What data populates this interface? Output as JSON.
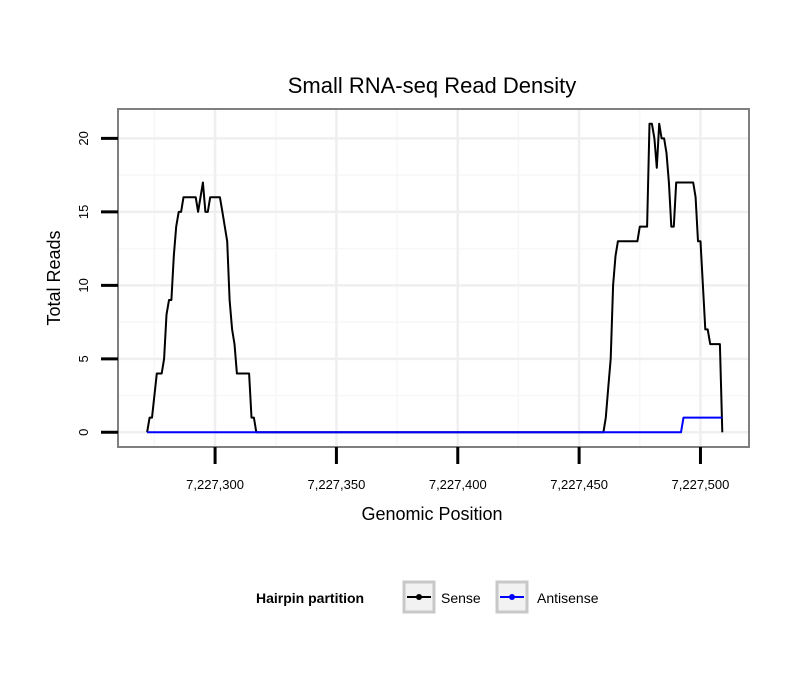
{
  "chart_data": {
    "type": "line",
    "title": "Small RNA-seq Read Density",
    "xlabel": "Genomic Position",
    "ylabel": "Total Reads",
    "xlim": [
      7227260,
      7227520
    ],
    "ylim": [
      -1,
      22
    ],
    "x_ticks": [
      7227300,
      7227350,
      7227400,
      7227450,
      7227500
    ],
    "x_tick_labels": [
      "7,227,300",
      "7,227,350",
      "7,227,400",
      "7,227,450",
      "7,227,500"
    ],
    "y_ticks": [
      0,
      5,
      10,
      15,
      20
    ],
    "y_tick_labels": [
      "0",
      "5",
      "10",
      "15",
      "20"
    ],
    "grid": true,
    "legend": {
      "title": "Hairpin partition",
      "placement": "bottom",
      "entries": [
        "Sense",
        "Antisense"
      ]
    },
    "series": [
      {
        "name": "Sense",
        "color": "#000000",
        "points": [
          [
            7227272,
            0
          ],
          [
            7227273,
            1
          ],
          [
            7227274,
            1
          ],
          [
            7227276,
            4
          ],
          [
            7227278,
            4
          ],
          [
            7227279,
            5
          ],
          [
            7227280,
            8
          ],
          [
            7227281,
            9
          ],
          [
            7227282,
            9
          ],
          [
            7227283,
            12
          ],
          [
            7227284,
            14
          ],
          [
            7227285,
            15
          ],
          [
            7227286,
            15
          ],
          [
            7227287,
            16
          ],
          [
            7227292,
            16
          ],
          [
            7227293,
            15
          ],
          [
            7227294,
            16
          ],
          [
            7227295,
            17
          ],
          [
            7227296,
            15
          ],
          [
            7227297,
            15
          ],
          [
            7227298,
            16
          ],
          [
            7227302,
            16
          ],
          [
            7227303,
            15
          ],
          [
            7227304,
            14
          ],
          [
            7227305,
            13
          ],
          [
            7227306,
            9
          ],
          [
            7227307,
            7
          ],
          [
            7227308,
            6
          ],
          [
            7227309,
            4
          ],
          [
            7227314,
            4
          ],
          [
            7227315,
            1
          ],
          [
            7227316,
            1
          ],
          [
            7227317,
            0
          ],
          [
            7227460,
            0
          ],
          [
            7227461,
            1
          ],
          [
            7227462,
            3
          ],
          [
            7227463,
            5
          ],
          [
            7227464,
            10
          ],
          [
            7227465,
            12
          ],
          [
            7227466,
            13
          ],
          [
            7227474,
            13
          ],
          [
            7227475,
            14
          ],
          [
            7227478,
            14
          ],
          [
            7227479,
            21
          ],
          [
            7227480,
            21
          ],
          [
            7227481,
            20
          ],
          [
            7227482,
            18
          ],
          [
            7227483,
            21
          ],
          [
            7227484,
            20
          ],
          [
            7227485,
            20
          ],
          [
            7227486,
            19
          ],
          [
            7227487,
            17
          ],
          [
            7227488,
            14
          ],
          [
            7227489,
            14
          ],
          [
            7227490,
            17
          ],
          [
            7227497,
            17
          ],
          [
            7227498,
            16
          ],
          [
            7227499,
            13
          ],
          [
            7227500,
            13
          ],
          [
            7227502,
            7
          ],
          [
            7227503,
            7
          ],
          [
            7227504,
            6
          ],
          [
            7227508,
            6
          ],
          [
            7227509,
            0
          ]
        ]
      },
      {
        "name": "Antisense",
        "color": "#0000ff",
        "points": [
          [
            7227272,
            0
          ],
          [
            7227492,
            0
          ],
          [
            7227493,
            1
          ],
          [
            7227509,
            1
          ]
        ]
      }
    ]
  }
}
